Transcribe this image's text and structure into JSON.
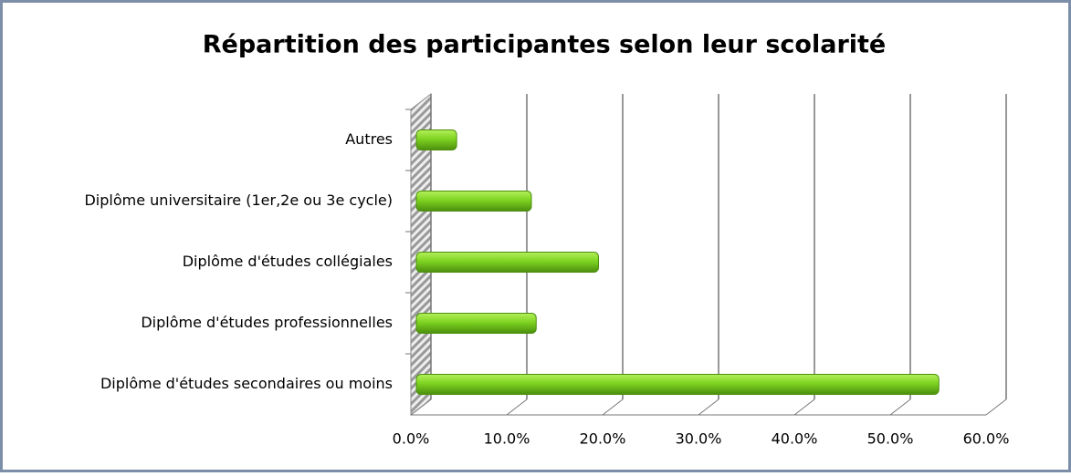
{
  "chart_data": {
    "type": "bar",
    "orientation": "horizontal",
    "title": "Répartition des participantes selon leur scolarité",
    "categories": [
      "Autres",
      "Diplôme universitaire (1er,2e ou 3e cycle)",
      "Diplôme d'études collégiales",
      "Diplôme d'études professionnelles",
      "Diplôme d'études secondaires ou moins"
    ],
    "values": [
      4.2,
      12,
      19,
      12.5,
      54.5
    ],
    "color": "#7ed321",
    "xlim": [
      0,
      60
    ],
    "xticks": [
      {
        "value": 0,
        "label": "0.0%"
      },
      {
        "value": 10,
        "label": "10.0%"
      },
      {
        "value": 20,
        "label": "20.0%"
      },
      {
        "value": 30,
        "label": "30.0%"
      },
      {
        "value": 40,
        "label": "40.0%"
      },
      {
        "value": 50,
        "label": "50.0%"
      },
      {
        "value": 60,
        "label": "60.0%"
      }
    ],
    "grid": true
  }
}
